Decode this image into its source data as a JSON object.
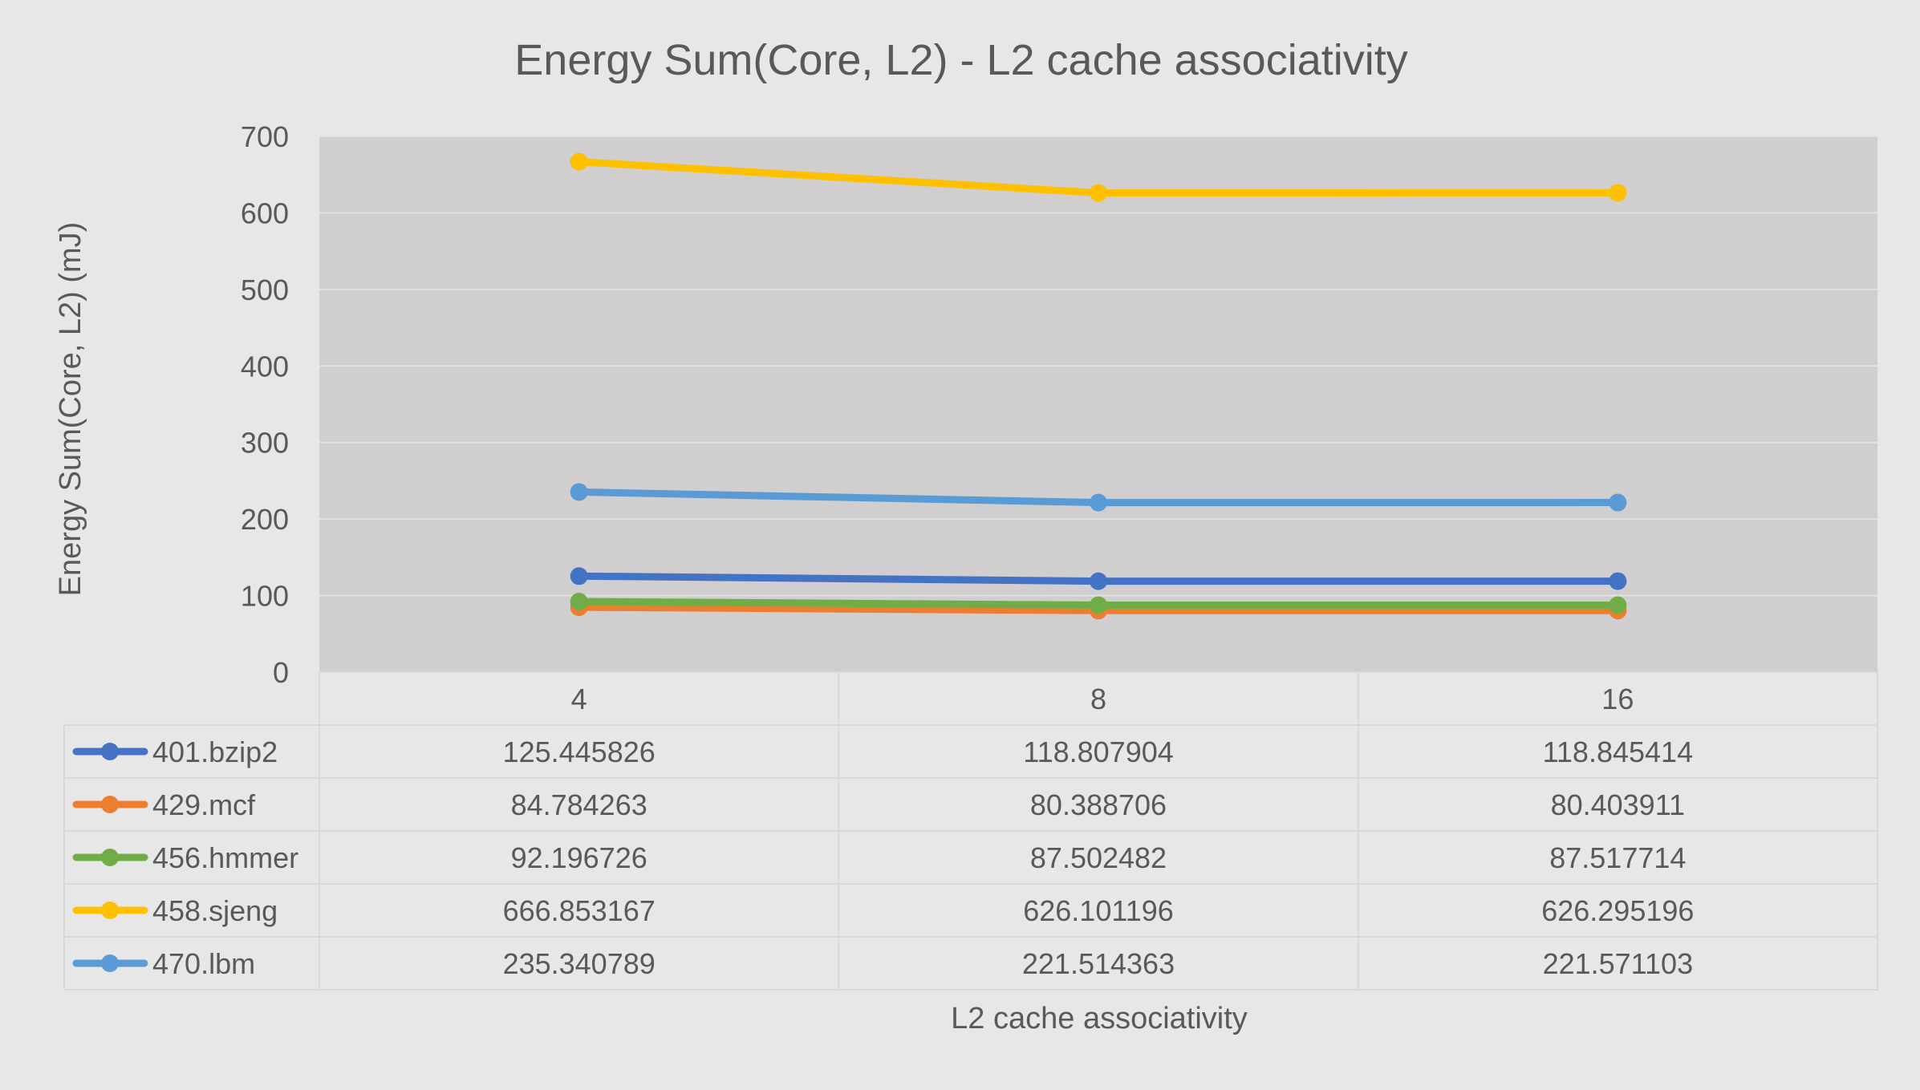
{
  "chart_data": {
    "type": "line",
    "title": "Energy Sum(Core, L2) - L2 cache associativity",
    "xlabel": "L2 cache associativity",
    "ylabel": "Energy Sum(Core, L2) (mJ)",
    "categories": [
      "4",
      "8",
      "16"
    ],
    "ylim": [
      0,
      700
    ],
    "yticks": [
      0,
      100,
      200,
      300,
      400,
      500,
      600,
      700
    ],
    "grid": true,
    "legend": "data-table",
    "series": [
      {
        "name": "401.bzip2",
        "color": "#4472c4",
        "values": [
          125.445826,
          118.807904,
          118.845414
        ],
        "labels": [
          "125.445826",
          "118.807904",
          "118.845414"
        ]
      },
      {
        "name": "429.mcf",
        "color": "#ed7d31",
        "values": [
          84.784263,
          80.388706,
          80.403911
        ],
        "labels": [
          "84.784263",
          "80.388706",
          "80.403911"
        ]
      },
      {
        "name": "456.hmmer",
        "color": "#70ad47",
        "values": [
          92.196726,
          87.502482,
          87.517714
        ],
        "labels": [
          "92.196726",
          "87.502482",
          "87.517714"
        ]
      },
      {
        "name": "458.sjeng",
        "color": "#ffc000",
        "values": [
          666.853167,
          626.101196,
          626.295196
        ],
        "labels": [
          "666.853167",
          "626.101196",
          "626.295196"
        ]
      },
      {
        "name": "470.lbm",
        "color": "#5b9bd5",
        "values": [
          235.340789,
          221.514363,
          221.571103
        ],
        "labels": [
          "235.340789",
          "221.514363",
          "221.571103"
        ]
      }
    ],
    "colors": {
      "background": "#e7e7e7",
      "plot_area": "#d0cece",
      "gridline": "#e3e1e1",
      "table_border": "#d9d9d9",
      "text": "#595959"
    }
  }
}
